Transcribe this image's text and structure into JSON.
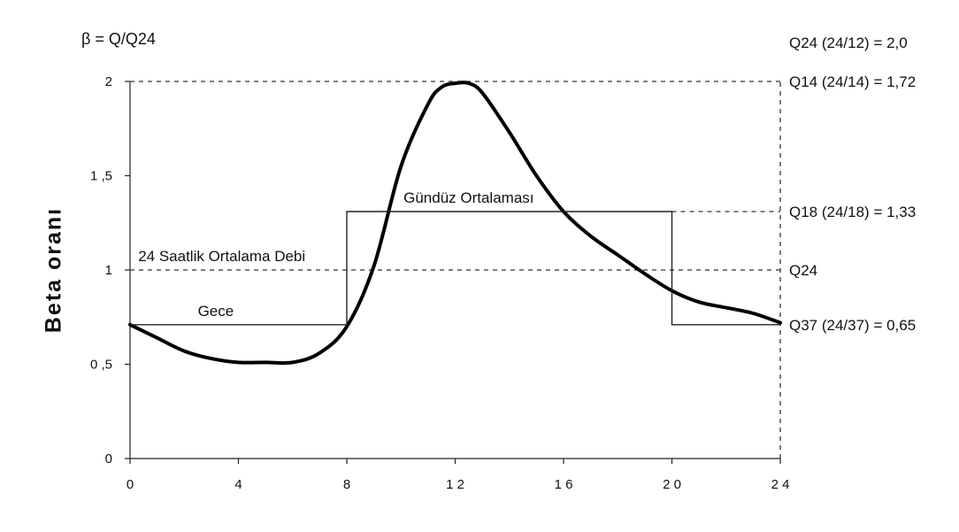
{
  "chart_data": {
    "type": "line",
    "title": "",
    "formula_label": "β = Q/Q24",
    "ylabel": "Beta oranı",
    "xlabel": "",
    "xlim": [
      0,
      24
    ],
    "ylim": [
      0,
      2
    ],
    "x_ticks": [
      {
        "value": 0,
        "label": "0"
      },
      {
        "value": 4,
        "label": "4"
      },
      {
        "value": 8,
        "label": "8"
      },
      {
        "value": 12,
        "label": "1 2"
      },
      {
        "value": 16,
        "label": "1 6"
      },
      {
        "value": 20,
        "label": "2 0"
      },
      {
        "value": 24,
        "label": "2 4"
      }
    ],
    "y_ticks": [
      {
        "value": 0,
        "label": "0"
      },
      {
        "value": 0.5,
        "label": "0 ,5"
      },
      {
        "value": 1,
        "label": "1"
      },
      {
        "value": 1.5,
        "label": "1 ,5"
      },
      {
        "value": 2,
        "label": "2"
      }
    ],
    "grid": false,
    "series": [
      {
        "style": "curve",
        "x": [
          0,
          1,
          2,
          3,
          4,
          5,
          6,
          7,
          8,
          9,
          10,
          11,
          11.5,
          12,
          12.5,
          13,
          14,
          15,
          16,
          17,
          18,
          19,
          20,
          21,
          22,
          23,
          24
        ],
        "y": [
          0.71,
          0.64,
          0.57,
          0.53,
          0.51,
          0.51,
          0.51,
          0.56,
          0.7,
          1.02,
          1.55,
          1.88,
          1.97,
          1.99,
          1.99,
          1.94,
          1.73,
          1.5,
          1.31,
          1.18,
          1.08,
          0.98,
          0.89,
          0.83,
          0.8,
          0.77,
          0.72
        ]
      },
      {
        "style": "step",
        "x": [
          0,
          8,
          8,
          20,
          20,
          24
        ],
        "y": [
          0.71,
          0.71,
          1.31,
          1.31,
          0.71,
          0.71
        ]
      }
    ],
    "reference_lines": [
      {
        "y": 2.0,
        "x_from": 0,
        "x_to": 24,
        "style": "dashed"
      },
      {
        "y": 1.0,
        "x_from": 0,
        "x_to": 24,
        "style": "dashed"
      },
      {
        "y": 1.31,
        "x_from": 20,
        "x_to": 24,
        "style": "dashed"
      },
      {
        "x": 24,
        "y_from": 0,
        "y_to": 2.0,
        "style": "dashed"
      }
    ],
    "annotations": [
      {
        "text": "Q24 (24/12) = 2,0",
        "pos": "top-right"
      },
      {
        "text": "Q14 (24/14) = 1,72",
        "anchor_y": 2.0
      },
      {
        "text": "Q18 (24/18) = 1,33",
        "anchor_y": 1.31
      },
      {
        "text": "Q24",
        "anchor_y": 1.0
      },
      {
        "text": "Q37 (24/37) = 0,65",
        "anchor_y": 0.71
      },
      {
        "text": "Gündüz Ortalaması",
        "anchor_x": 12.5,
        "anchor_y": 1.31
      },
      {
        "text": "24 Saatlik Ortalama Debi",
        "anchor_x": 0.3,
        "anchor_y": 1.0
      },
      {
        "text": "Gece",
        "anchor_x": 2.5,
        "anchor_y": 0.71
      }
    ]
  }
}
